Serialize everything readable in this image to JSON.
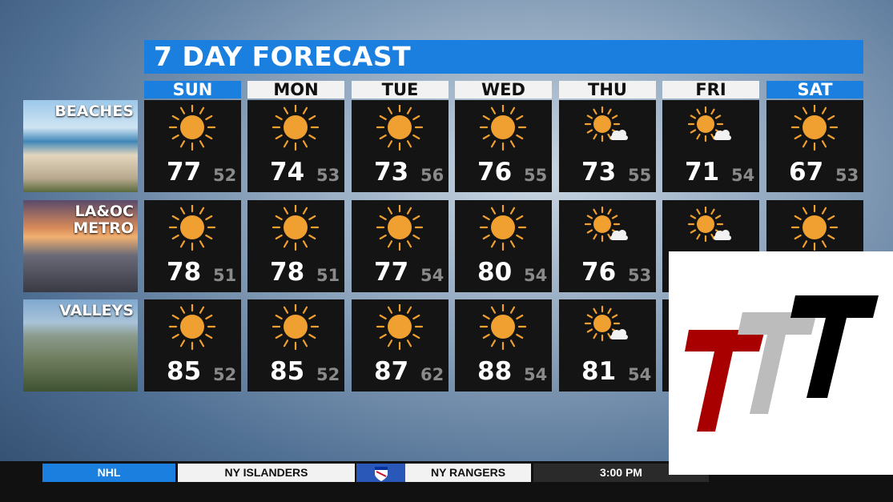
{
  "title": "7 DAY FORECAST",
  "days": [
    "SUN",
    "MON",
    "TUE",
    "WED",
    "THU",
    "FRI",
    "SAT"
  ],
  "weekend_days": [
    "SUN",
    "SAT"
  ],
  "colors": {
    "accent": "#1b7fe0",
    "sun": "#f0a030",
    "cloud": "#f2f2f2",
    "cell": "#141414"
  },
  "regions": [
    {
      "label": "BEACHES",
      "icons": [
        "sun",
        "sun",
        "sun",
        "sun",
        "sun-cloud",
        "sun-cloud",
        "sun"
      ],
      "highs": [
        "77",
        "74",
        "73",
        "76",
        "73",
        "71",
        "67"
      ],
      "lows": [
        "52",
        "53",
        "56",
        "55",
        "55",
        "54",
        "53"
      ]
    },
    {
      "label": "LA&OC\nMETRO",
      "label_lines": [
        "LA&OC",
        "METRO"
      ],
      "icons": [
        "sun",
        "sun",
        "sun",
        "sun",
        "sun-cloud",
        "sun-cloud",
        "sun"
      ],
      "highs": [
        "78",
        "78",
        "77",
        "80",
        "76",
        "",
        ""
      ],
      "lows": [
        "51",
        "51",
        "54",
        "54",
        "53",
        "",
        ""
      ]
    },
    {
      "label": "VALLEYS",
      "icons": [
        "sun",
        "sun",
        "sun",
        "sun",
        "sun-cloud",
        "",
        ""
      ],
      "highs": [
        "85",
        "85",
        "87",
        "88",
        "81",
        "",
        ""
      ],
      "lows": [
        "52",
        "52",
        "62",
        "54",
        "54",
        "",
        ""
      ]
    }
  ],
  "ticker": {
    "league": "NHL",
    "team1": "NY ISLANDERS",
    "team2": "NY RANGERS",
    "time": "3:00 PM"
  },
  "overlay_logo": "TTT"
}
